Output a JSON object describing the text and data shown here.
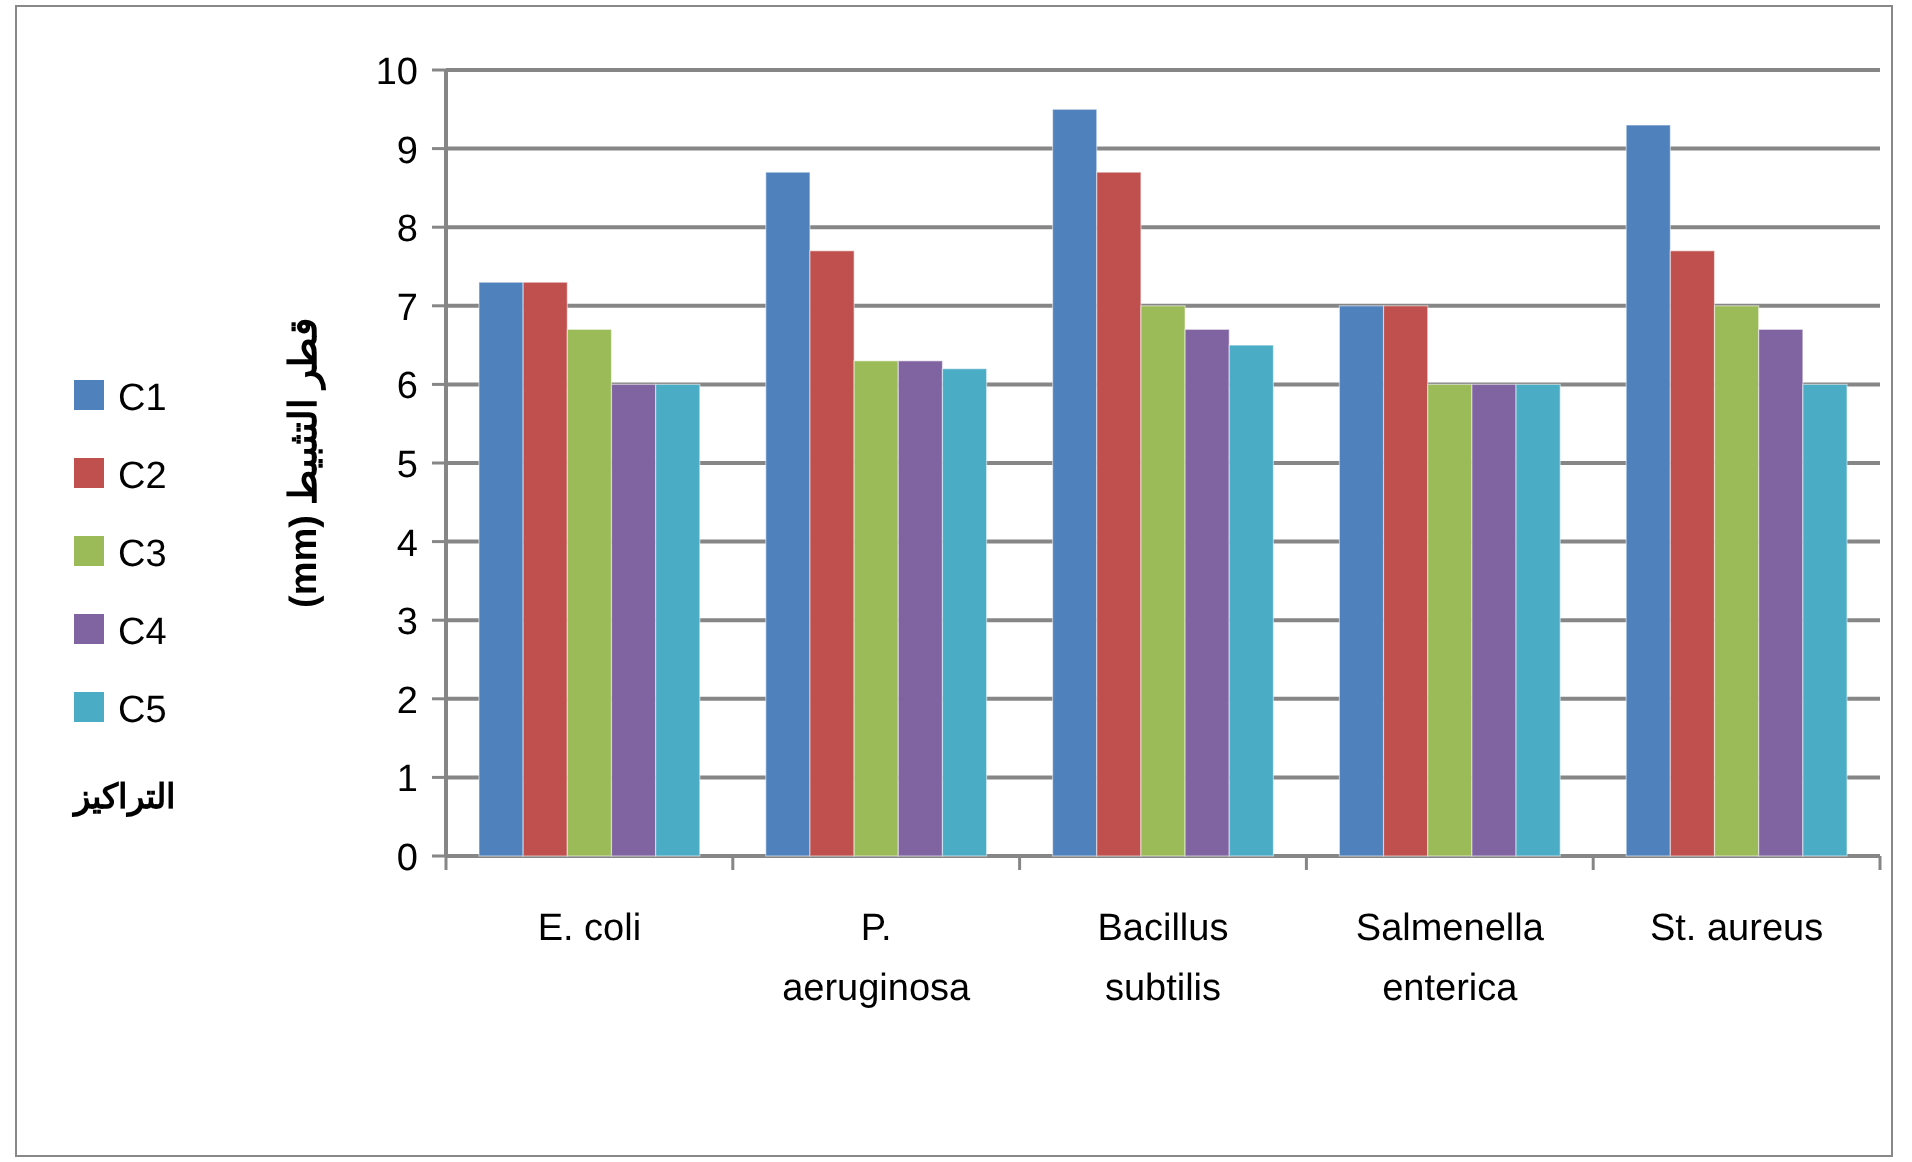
{
  "chart_data": {
    "type": "bar",
    "ylabel": "قطر التثبيط (mm)",
    "legend_title": "التراكيز",
    "categories": [
      "E. coli",
      "P. aeruginosa",
      "Bacillus subtilis",
      "Salmenella enterica",
      "St. aureus"
    ],
    "series": [
      {
        "name": "C1",
        "color": "#4f81bd",
        "values": [
          7.3,
          8.7,
          9.5,
          7.0,
          9.3
        ]
      },
      {
        "name": "C2",
        "color": "#c0504d",
        "values": [
          7.3,
          7.7,
          8.7,
          7.0,
          7.7
        ]
      },
      {
        "name": "C3",
        "color": "#9bbb59",
        "values": [
          6.7,
          6.3,
          7.0,
          6.0,
          7.0
        ]
      },
      {
        "name": "C4",
        "color": "#8064a2",
        "values": [
          6.0,
          6.3,
          6.7,
          6.0,
          6.7
        ]
      },
      {
        "name": "C5",
        "color": "#4bacc6",
        "values": [
          6.0,
          6.2,
          6.5,
          6.0,
          6.0
        ]
      }
    ],
    "ylim": [
      0,
      10
    ],
    "yticks": [
      0,
      1,
      2,
      3,
      4,
      5,
      6,
      7,
      8,
      9,
      10
    ],
    "grid": "y",
    "legend": "left"
  }
}
